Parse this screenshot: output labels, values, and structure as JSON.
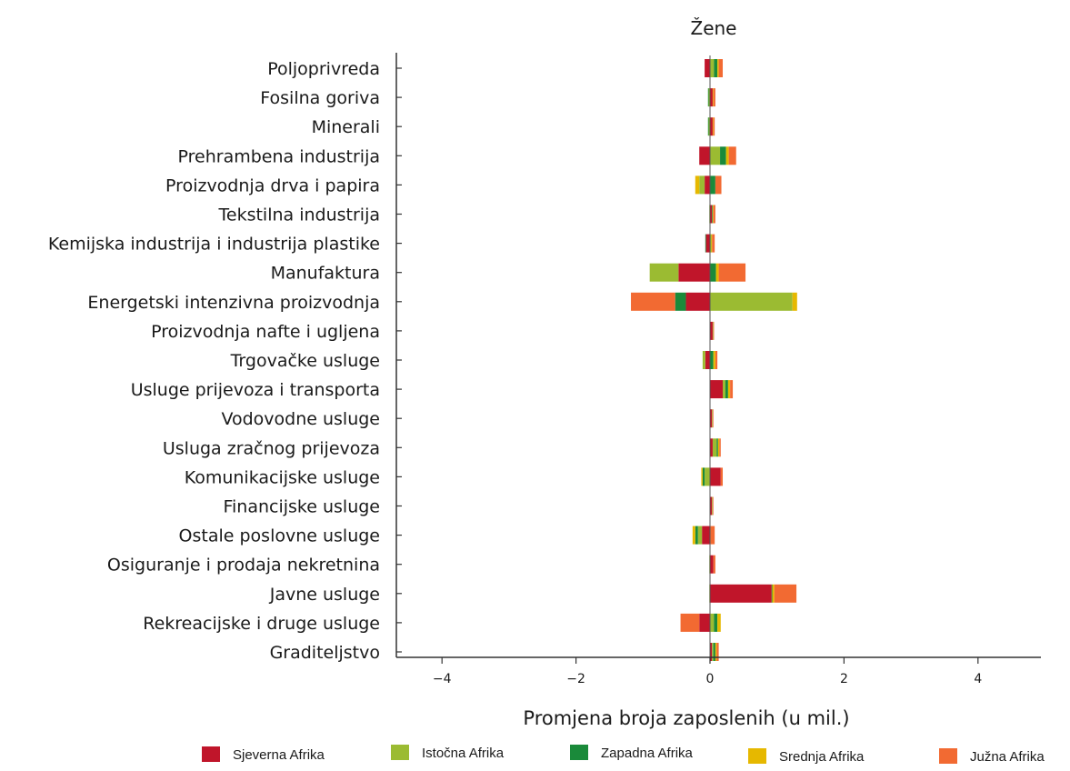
{
  "chart_data": {
    "type": "bar",
    "orientation": "horizontal",
    "stacked": "diverging",
    "title": "Žene",
    "xlabel": "Promjena broja zaposlenih (u mil.)",
    "xlim": [
      -4.5,
      4.9
    ],
    "xticks": [
      -4,
      -2,
      0,
      2,
      4
    ],
    "xtick_labels": [
      "−4",
      "−2",
      "0",
      "2",
      "4"
    ],
    "grid": false,
    "legend_position": "bottom",
    "categories": [
      "Poljoprivreda",
      "Fosilna goriva",
      "Minerali",
      "Prehrambena industrija",
      "Proizvodnja drva i papira",
      "Tekstilna industrija",
      "Kemijska industrija i industrija plastike",
      "Manufaktura",
      "Energetski intenzivna proizvodnja",
      "Proizvodnja nafte i ugljena",
      "Trgovačke usluge",
      "Usluge prijevoza i transporta",
      "Vodovodne usluge",
      "Usluga zračnog prijevoza",
      "Komunikacijske usluge",
      "Financijske usluge",
      "Ostale poslovne usluge",
      "Osiguranje i prodaja nekretnina",
      "Javne usluge",
      "Rekreacijske i druge usluge",
      "Graditeljstvo"
    ],
    "series": [
      {
        "name": "Sjeverna Afrika",
        "color": "#c0152a",
        "values": [
          -0.08,
          0.04,
          0.04,
          -0.16,
          -0.08,
          0.03,
          -0.06,
          -0.47,
          -0.36,
          0.04,
          -0.07,
          0.19,
          0.03,
          0.04,
          0.16,
          0.03,
          -0.12,
          0.05,
          0.92,
          -0.16,
          0.03
        ]
      },
      {
        "name": "Istočna Afrika",
        "color": "#9bbb32",
        "values": [
          0.06,
          -0.02,
          -0.02,
          0.15,
          -0.08,
          -0.01,
          0.02,
          -0.43,
          1.23,
          0.01,
          -0.04,
          0.04,
          0.01,
          0.06,
          -0.08,
          0.01,
          -0.06,
          -0.01,
          -0.01,
          0.06,
          0.02
        ]
      },
      {
        "name": "Zapadna Afrika",
        "color": "#1a8a3a",
        "values": [
          0.05,
          -0.01,
          -0.01,
          0.09,
          0.08,
          0.01,
          -0.01,
          0.09,
          -0.16,
          0.0,
          0.05,
          0.04,
          0.0,
          0.02,
          -0.03,
          0.0,
          -0.04,
          0.0,
          0.01,
          0.05,
          0.03
        ]
      },
      {
        "name": "Srednja Afrika",
        "color": "#e6b800",
        "values": [
          0.02,
          0.01,
          0.01,
          0.04,
          -0.06,
          0.01,
          0.01,
          0.04,
          0.07,
          0.0,
          0.03,
          0.03,
          0.0,
          0.02,
          -0.02,
          0.0,
          -0.04,
          0.0,
          0.03,
          0.05,
          0.02
        ]
      },
      {
        "name": "Južna Afrika",
        "color": "#f26a32",
        "values": [
          0.06,
          0.03,
          0.02,
          0.11,
          0.09,
          0.03,
          0.04,
          0.4,
          -0.66,
          0.01,
          0.03,
          0.04,
          0.01,
          0.02,
          0.03,
          0.01,
          0.07,
          0.03,
          0.33,
          -0.28,
          0.03
        ]
      }
    ]
  }
}
